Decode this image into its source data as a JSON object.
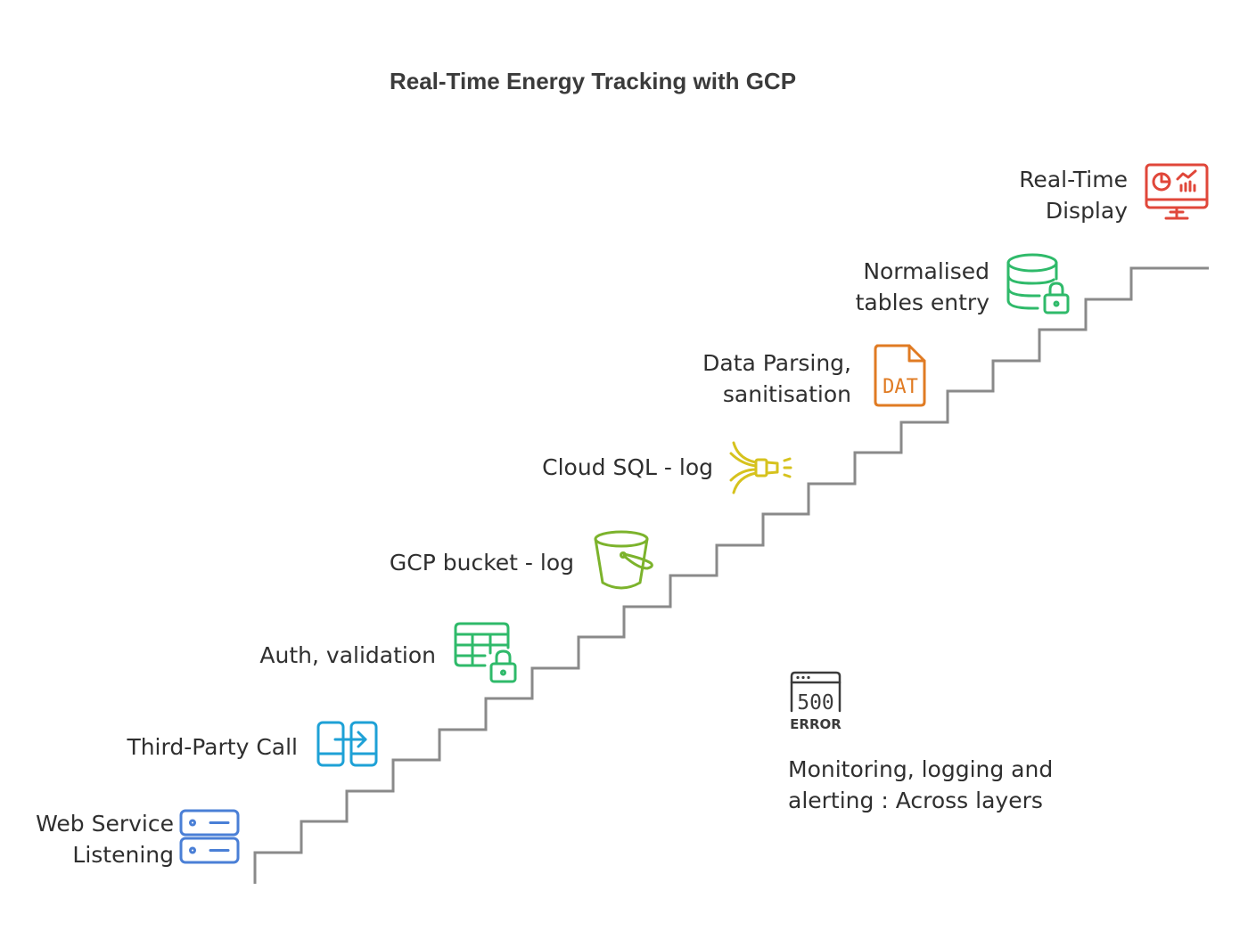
{
  "title": "Real-Time Energy Tracking with GCP",
  "steps": [
    {
      "label": "Web Service Listening",
      "lines": [
        "Web Service",
        "Listening"
      ],
      "icon": "server-icon",
      "color": "#4a7fd6"
    },
    {
      "label": "Third-Party Call",
      "lines": [
        "Third-Party Call"
      ],
      "icon": "api-call-icon",
      "color": "#1ea1d6"
    },
    {
      "label": "Auth, validation",
      "lines": [
        "Auth, validation"
      ],
      "icon": "secure-table-icon",
      "color": "#2fba6a"
    },
    {
      "label": "GCP bucket - log",
      "lines": [
        "GCP bucket - log"
      ],
      "icon": "bucket-icon",
      "color": "#7cb32c"
    },
    {
      "label": "Cloud SQL - log",
      "lines": [
        "Cloud SQL - log"
      ],
      "icon": "connector-icon",
      "color": "#d6c21e"
    },
    {
      "label": "Data Parsing, sanitisation",
      "lines": [
        "Data Parsing,",
        "sanitisation"
      ],
      "icon": "dat-file-icon",
      "color": "#e07b23",
      "icon_text": "DAT"
    },
    {
      "label": "Normalised tables entry",
      "lines": [
        "Normalised",
        "tables entry"
      ],
      "icon": "database-lock-icon",
      "color": "#2fba6a"
    },
    {
      "label": "Real-Time Display",
      "lines": [
        "Real-Time",
        "Display"
      ],
      "icon": "monitor-dashboard-icon",
      "color": "#e0473a"
    }
  ],
  "monitoring": {
    "lines": [
      "Monitoring, logging and",
      "alerting : Across layers"
    ],
    "icon": "error-500-icon",
    "icon_code": "500",
    "icon_word": "ERROR",
    "color": "#3b3b3b"
  },
  "stair_color": "#8a8a8a"
}
